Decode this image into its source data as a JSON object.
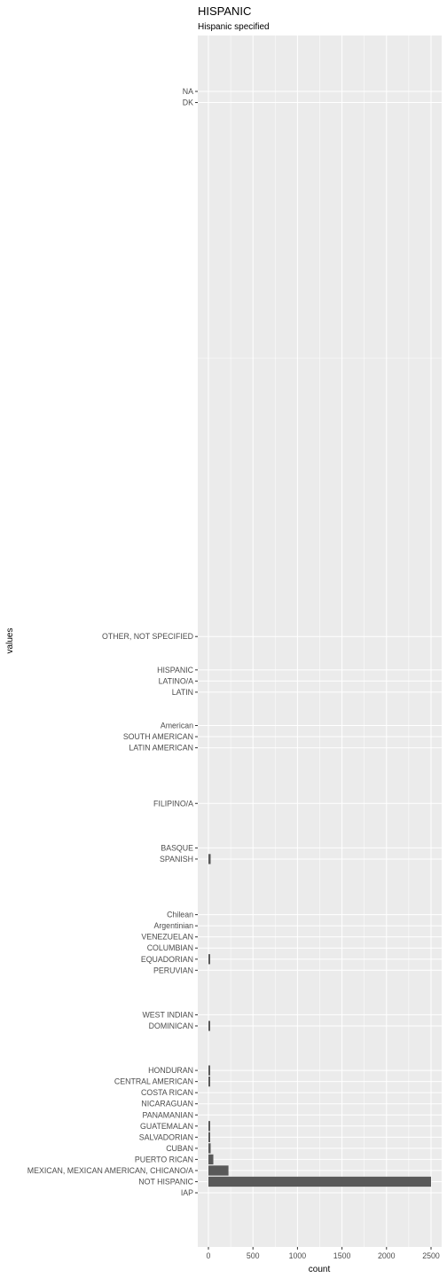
{
  "chart_data": {
    "type": "bar",
    "orientation": "horizontal",
    "title": "HISPANIC",
    "subtitle": "Hispanic specified",
    "xlabel": "count",
    "ylabel": "values",
    "xlim": [
      0,
      2500
    ],
    "xticks": [
      0,
      500,
      1000,
      1500,
      2000,
      2500
    ],
    "grid": true,
    "categories": [
      {
        "label": "NA",
        "code": 99,
        "value": 0
      },
      {
        "label": "DK",
        "code": 98,
        "value": 0
      },
      {
        "label": "OTHER, NOT SPECIFIED",
        "code": 50,
        "value": 0
      },
      {
        "label": "HISPANIC",
        "code": 47,
        "value": 0
      },
      {
        "label": "LATINO/A",
        "code": 46,
        "value": 0
      },
      {
        "label": "LATIN",
        "code": 45,
        "value": 0
      },
      {
        "label": "American",
        "code": 42,
        "value": 0
      },
      {
        "label": "SOUTH AMERICAN",
        "code": 41,
        "value": 0
      },
      {
        "label": "LATIN AMERICAN",
        "code": 40,
        "value": 0
      },
      {
        "label": "FILIPINO/A",
        "code": 35,
        "value": 0
      },
      {
        "label": "BASQUE",
        "code": 31,
        "value": 0
      },
      {
        "label": "SPANISH",
        "code": 30,
        "value": 25
      },
      {
        "label": "Chilean",
        "code": 25,
        "value": 0
      },
      {
        "label": "Argentinian",
        "code": 24,
        "value": 0
      },
      {
        "label": "VENEZUELAN",
        "code": 23,
        "value": 0
      },
      {
        "label": "COLUMBIAN",
        "code": 22,
        "value": 0
      },
      {
        "label": "EQUADORIAN",
        "code": 21,
        "value": 10
      },
      {
        "label": "PERUVIAN",
        "code": 20,
        "value": 0
      },
      {
        "label": "WEST INDIAN",
        "code": 16,
        "value": 0
      },
      {
        "label": "DOMINICAN",
        "code": 15,
        "value": 12
      },
      {
        "label": "HONDURAN",
        "code": 11,
        "value": 8
      },
      {
        "label": "CENTRAL AMERICAN",
        "code": 10,
        "value": 8
      },
      {
        "label": "COSTA RICAN",
        "code": 9,
        "value": 0
      },
      {
        "label": "NICARAGUAN",
        "code": 8,
        "value": 0
      },
      {
        "label": "PANAMANIAN",
        "code": 7,
        "value": 0
      },
      {
        "label": "GUATEMALAN",
        "code": 6,
        "value": 10
      },
      {
        "label": "SALVADORIAN",
        "code": 5,
        "value": 15
      },
      {
        "label": "CUBAN",
        "code": 4,
        "value": 25
      },
      {
        "label": "PUERTO RICAN",
        "code": 3,
        "value": 55
      },
      {
        "label": "MEXICAN, MEXICAN AMERICAN, CHICANO/A",
        "code": 2,
        "value": 225
      },
      {
        "label": "NOT HISPANIC",
        "code": 1,
        "value": 2500
      },
      {
        "label": "IAP",
        "code": 0,
        "value": 0
      }
    ],
    "colors": {
      "panel": "#ebebeb",
      "grid_major": "#ffffff",
      "bar": "#595959",
      "tick": "#333333",
      "tick_label": "#4d4d4d"
    }
  }
}
